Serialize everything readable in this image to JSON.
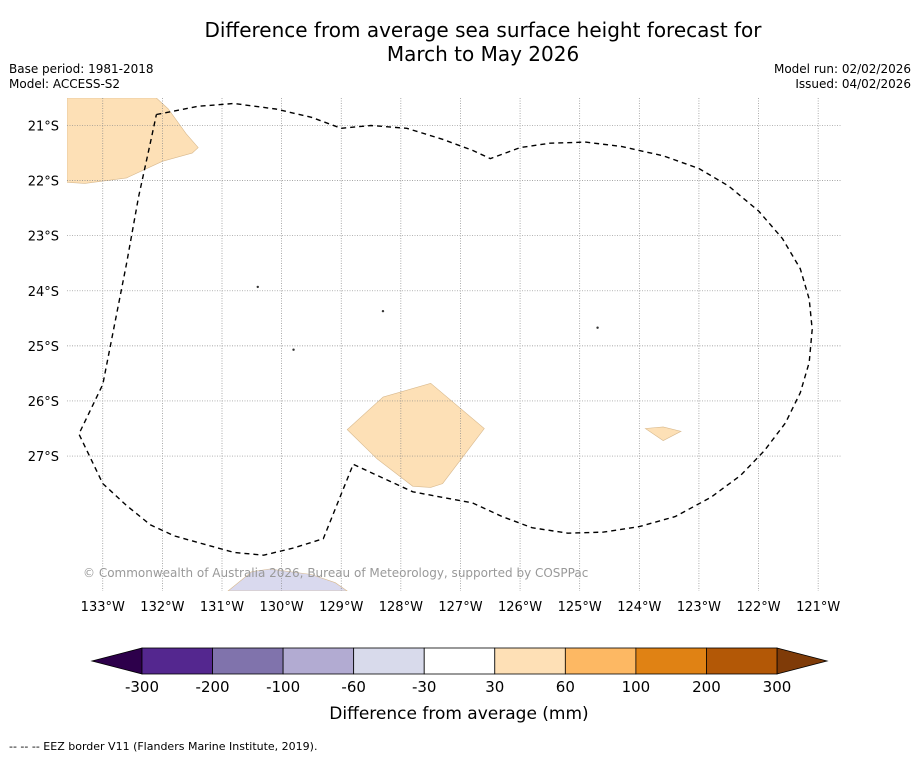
{
  "title_line1": "Difference from average sea surface height forecast for",
  "title_line2": "March to May 2026",
  "base_period": "Base period: 1981-2018",
  "model": "Model: ACCESS-S2",
  "model_run": "Model run: 02/02/2026",
  "issued": "Issued: 04/02/2026",
  "copyright": "© Commonwealth of Australia 2026, Bureau of Meteorology, supported by COSPPac",
  "footer_note": "--  --  -- EEZ border V11 (Flanders Marine Institute, 2019).",
  "map": {
    "lon_range": [
      -133.6,
      -120.6
    ],
    "lat_range": [
      -29.45,
      -20.5
    ],
    "lon_ticks": [
      -133,
      -132,
      -131,
      -130,
      -129,
      -128,
      -127,
      -126,
      -125,
      -124,
      -123,
      -122,
      -121
    ],
    "lon_labels": [
      "133°W",
      "132°W",
      "131°W",
      "130°W",
      "129°W",
      "128°W",
      "127°W",
      "126°W",
      "125°W",
      "124°W",
      "123°W",
      "122°W",
      "121°W"
    ],
    "lat_ticks": [
      -21,
      -22,
      -23,
      -24,
      -25,
      -26,
      -27
    ],
    "lat_labels": [
      "21°S",
      "22°S",
      "23°S",
      "24°S",
      "25°S",
      "26°S",
      "27°S"
    ],
    "anomaly_regions": [
      {
        "name": "northwest-30-60-region",
        "color": "#fde0b6",
        "points": [
          [
            -133.6,
            -22.03
          ],
          [
            -133.3,
            -22.05
          ],
          [
            -132.6,
            -21.95
          ],
          [
            -132.0,
            -21.65
          ],
          [
            -131.5,
            -21.5
          ],
          [
            -131.4,
            -21.4
          ],
          [
            -131.6,
            -21.15
          ],
          [
            -131.9,
            -20.7
          ],
          [
            -132.1,
            -20.5
          ],
          [
            -133.6,
            -20.5
          ]
        ]
      },
      {
        "name": "central-south-30-60-region",
        "color": "#fde0b6",
        "points": [
          [
            -128.3,
            -25.93
          ],
          [
            -127.5,
            -25.68
          ],
          [
            -126.6,
            -26.5
          ],
          [
            -127.3,
            -27.5
          ],
          [
            -127.5,
            -27.57
          ],
          [
            -127.8,
            -27.55
          ],
          [
            -128.4,
            -27.05
          ],
          [
            -128.9,
            -26.52
          ]
        ]
      },
      {
        "name": "east-30-60-region",
        "color": "#fde0b6",
        "points": [
          [
            -123.9,
            -26.5
          ],
          [
            -123.6,
            -26.47
          ],
          [
            -123.3,
            -26.55
          ],
          [
            -123.6,
            -26.72
          ]
        ]
      },
      {
        "name": "south-minus60-minus30-region",
        "color": "#d9d9ee",
        "points": [
          [
            -130.9,
            -29.45
          ],
          [
            -130.5,
            -29.1
          ],
          [
            -130.2,
            -29.05
          ],
          [
            -129.5,
            -29.15
          ],
          [
            -129.1,
            -29.3
          ],
          [
            -128.9,
            -29.45
          ]
        ]
      }
    ],
    "eez_boundary": [
      [
        -132.1,
        -20.8
      ],
      [
        -131.4,
        -20.65
      ],
      [
        -130.8,
        -20.6
      ],
      [
        -130.1,
        -20.7
      ],
      [
        -129.5,
        -20.85
      ],
      [
        -129.0,
        -21.05
      ],
      [
        -128.5,
        -21.0
      ],
      [
        -127.9,
        -21.05
      ],
      [
        -127.3,
        -21.25
      ],
      [
        -126.8,
        -21.45
      ],
      [
        -126.5,
        -21.6
      ],
      [
        -126.0,
        -21.4
      ],
      [
        -125.5,
        -21.32
      ],
      [
        -124.9,
        -21.3
      ],
      [
        -124.3,
        -21.38
      ],
      [
        -123.6,
        -21.55
      ],
      [
        -123.0,
        -21.78
      ],
      [
        -122.5,
        -22.1
      ],
      [
        -122.0,
        -22.55
      ],
      [
        -121.6,
        -23.05
      ],
      [
        -121.3,
        -23.6
      ],
      [
        -121.15,
        -24.15
      ],
      [
        -121.1,
        -24.7
      ],
      [
        -121.15,
        -25.3
      ],
      [
        -121.3,
        -25.85
      ],
      [
        -121.55,
        -26.4
      ],
      [
        -121.9,
        -26.9
      ],
      [
        -122.3,
        -27.35
      ],
      [
        -122.8,
        -27.75
      ],
      [
        -123.4,
        -28.1
      ],
      [
        -124.0,
        -28.28
      ],
      [
        -124.6,
        -28.38
      ],
      [
        -125.2,
        -28.4
      ],
      [
        -125.8,
        -28.3
      ],
      [
        -126.3,
        -28.1
      ],
      [
        -126.8,
        -27.85
      ],
      [
        -127.3,
        -27.75
      ],
      [
        -127.8,
        -27.65
      ],
      [
        -128.3,
        -27.4
      ],
      [
        -128.8,
        -27.15
      ],
      [
        -129.3,
        -28.5
      ],
      [
        -129.8,
        -28.67
      ],
      [
        -130.3,
        -28.8
      ],
      [
        -130.8,
        -28.75
      ],
      [
        -131.3,
        -28.6
      ],
      [
        -131.8,
        -28.45
      ],
      [
        -132.2,
        -28.25
      ],
      [
        -132.6,
        -27.9
      ],
      [
        -133.0,
        -27.5
      ],
      [
        -133.4,
        -26.6
      ],
      [
        -133.0,
        -25.7
      ],
      [
        -132.8,
        -24.6
      ],
      [
        -132.6,
        -23.5
      ],
      [
        -132.4,
        -22.3
      ],
      [
        -132.2,
        -21.3
      ],
      [
        -132.1,
        -20.8
      ]
    ],
    "islands": [
      [
        -128.3,
        -24.37
      ],
      [
        -130.4,
        -23.93
      ],
      [
        -129.8,
        -25.07
      ],
      [
        -124.7,
        -24.67
      ]
    ]
  },
  "legend": {
    "title": "Difference from average (mm)",
    "tick_labels": [
      "-300",
      "-200",
      "-100",
      "-60",
      "-30",
      "30",
      "60",
      "100",
      "200",
      "300"
    ],
    "bins": [
      {
        "range": "-300 to -200",
        "color": "#54278f"
      },
      {
        "range": "-200 to -100",
        "color": "#8073ac"
      },
      {
        "range": "-100 to -60",
        "color": "#b2abd2"
      },
      {
        "range": "-60 to -30",
        "color": "#d8daeb"
      },
      {
        "range": "-30 to 30",
        "color": "#ffffff"
      },
      {
        "range": "30 to 60",
        "color": "#fee0b6"
      },
      {
        "range": "60 to 100",
        "color": "#fdb863"
      },
      {
        "range": "100 to 200",
        "color": "#e08214"
      },
      {
        "range": "200 to 300",
        "color": "#b35806"
      }
    ],
    "under_color": "#2d004b",
    "over_color": "#7f3b08"
  }
}
